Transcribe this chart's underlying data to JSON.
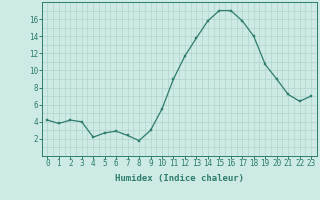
{
  "x": [
    0,
    1,
    2,
    3,
    4,
    5,
    6,
    7,
    8,
    9,
    10,
    11,
    12,
    13,
    14,
    15,
    16,
    17,
    18,
    19,
    20,
    21,
    22,
    23
  ],
  "y": [
    4.2,
    3.8,
    4.2,
    4.0,
    2.2,
    2.7,
    2.9,
    2.4,
    1.8,
    3.0,
    5.5,
    9.0,
    11.7,
    13.8,
    15.8,
    17.0,
    17.0,
    15.8,
    14.0,
    10.7,
    9.0,
    7.2,
    6.4,
    7.0
  ],
  "xlabel": "Humidex (Indice chaleur)",
  "line_color": "#2e7d6e",
  "marker_color": "#2e7d6e",
  "bg_color": "#ceeae5",
  "grid_color": "#b0d4cc",
  "axis_color": "#2e7d6e",
  "tick_color": "#2e7d6e",
  "ylim": [
    0,
    18
  ],
  "xlim": [
    -0.5,
    23.5
  ],
  "yticks": [
    2,
    4,
    6,
    8,
    10,
    12,
    14,
    16
  ],
  "xticks": [
    0,
    1,
    2,
    3,
    4,
    5,
    6,
    7,
    8,
    9,
    10,
    11,
    12,
    13,
    14,
    15,
    16,
    17,
    18,
    19,
    20,
    21,
    22,
    23
  ],
  "xtick_labels": [
    "0",
    "1",
    "2",
    "3",
    "4",
    "5",
    "6",
    "7",
    "8",
    "9",
    "10",
    "11",
    "12",
    "13",
    "14",
    "15",
    "16",
    "17",
    "18",
    "19",
    "20",
    "21",
    "22",
    "23"
  ],
  "fontsize_ticks": 5.5,
  "fontsize_xlabel": 6.5,
  "marker_size": 2.0,
  "line_width": 0.9
}
